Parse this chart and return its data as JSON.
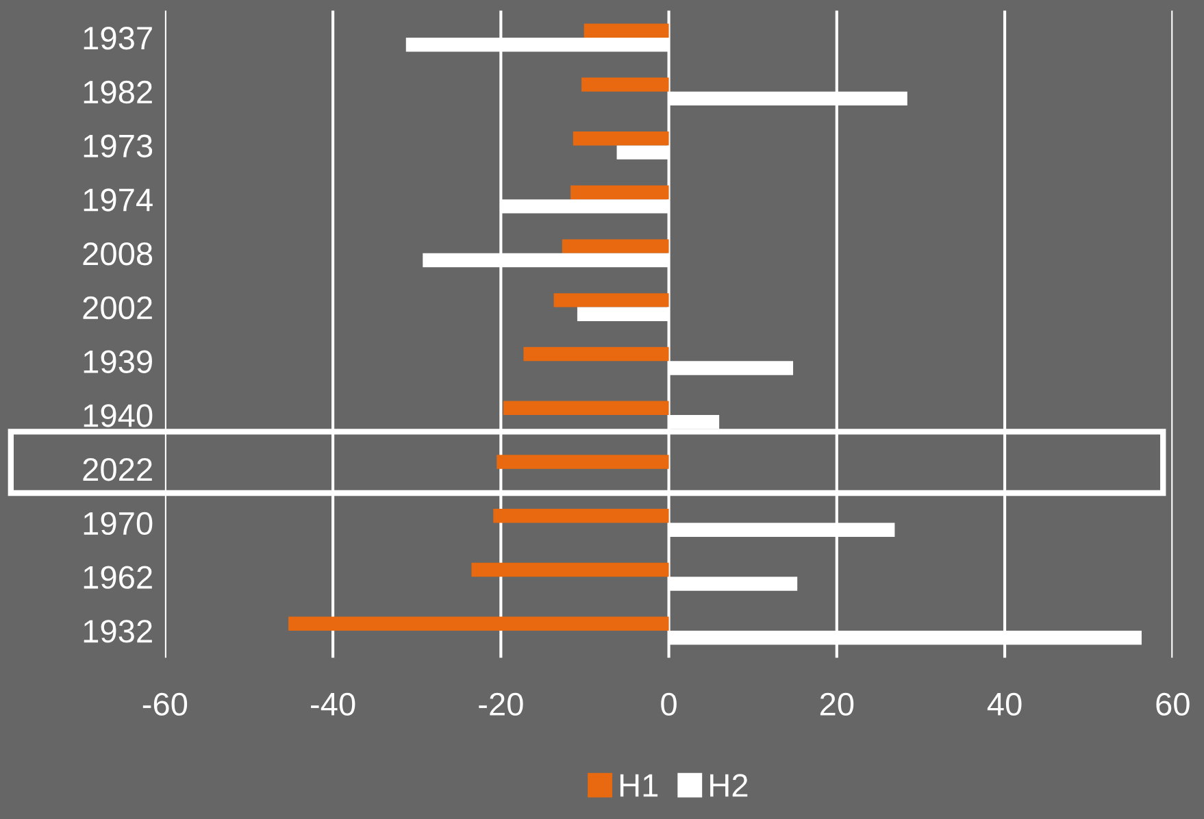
{
  "chart_data": {
    "type": "bar",
    "orientation": "horizontal",
    "categories": [
      "1937",
      "1982",
      "1973",
      "1974",
      "2008",
      "2002",
      "1939",
      "1940",
      "2022",
      "1970",
      "1962",
      "1932"
    ],
    "series": [
      {
        "name": "H1",
        "color": "#e8690f",
        "values": [
          -10.1,
          -10.4,
          -11.4,
          -11.7,
          -12.7,
          -13.7,
          -17.3,
          -19.7,
          -20.5,
          -20.9,
          -23.5,
          -45.3
        ]
      },
      {
        "name": "H2",
        "color": "#ffffff",
        "values": [
          -31.3,
          28.4,
          -6.2,
          -20.1,
          -29.3,
          -10.9,
          14.8,
          6.0,
          null,
          26.9,
          15.3,
          56.3
        ]
      }
    ],
    "xlim": [
      -60,
      60
    ],
    "xticks": [
      -60,
      -40,
      -20,
      0,
      20,
      40,
      60
    ],
    "grid": "x",
    "legend": "bottom"
  }
}
